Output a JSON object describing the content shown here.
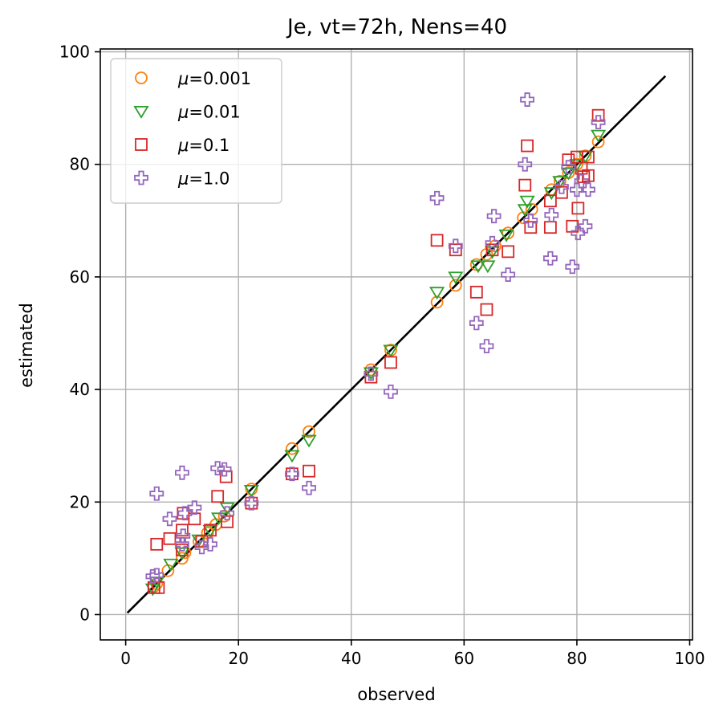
{
  "chart_data": {
    "type": "scatter",
    "title": "Je, vt=72h, Nens=40",
    "xlabel": "observed",
    "ylabel": "estimated",
    "xlim": [
      -4.5,
      100.5
    ],
    "ylim": [
      -4.5,
      100.5
    ],
    "xticks": [
      0,
      20,
      40,
      60,
      80,
      100
    ],
    "yticks": [
      0,
      20,
      40,
      60,
      80,
      100
    ],
    "grid": true,
    "legend_position": "top-left",
    "reference_line": {
      "x": [
        0.3,
        95.7
      ],
      "y": [
        0.3,
        95.7
      ],
      "color": "#000000"
    },
    "series": [
      {
        "name": "μ=0.001",
        "legend_prefix": "μ",
        "legend_suffix": "=0.001",
        "marker": "circle",
        "color": "#ff7f0e",
        "points": [
          [
            5,
            5
          ],
          [
            5.5,
            5.5
          ],
          [
            7.5,
            7.8
          ],
          [
            10,
            10
          ],
          [
            10.5,
            11
          ],
          [
            13,
            13
          ],
          [
            14.5,
            14.5
          ],
          [
            16,
            16
          ],
          [
            17.5,
            17.5
          ],
          [
            22.3,
            22.3
          ],
          [
            29.5,
            29.5
          ],
          [
            32.5,
            32.5
          ],
          [
            43.5,
            43.5
          ],
          [
            47,
            47
          ],
          [
            55.2,
            55.5
          ],
          [
            58.5,
            58.5
          ],
          [
            62.2,
            62.2
          ],
          [
            64,
            64
          ],
          [
            65.5,
            65.5
          ],
          [
            67.8,
            67.8
          ],
          [
            70.5,
            70.5
          ],
          [
            72,
            72
          ],
          [
            75.5,
            75.5
          ],
          [
            77,
            77
          ],
          [
            78.5,
            78.5
          ],
          [
            80,
            80
          ],
          [
            81.5,
            81.5
          ],
          [
            83.8,
            84
          ]
        ]
      },
      {
        "name": "μ=0.01",
        "legend_prefix": "μ",
        "legend_suffix": "=0.01",
        "marker": "triangle-down",
        "color": "#2ca02c",
        "points": [
          [
            4.8,
            4.6
          ],
          [
            5.5,
            5.8
          ],
          [
            8,
            9
          ],
          [
            10,
            11
          ],
          [
            13,
            13.3
          ],
          [
            15,
            15
          ],
          [
            16.5,
            17.2
          ],
          [
            18,
            19
          ],
          [
            22.3,
            22.1
          ],
          [
            29.5,
            28.3
          ],
          [
            32.5,
            31
          ],
          [
            43.5,
            43
          ],
          [
            47,
            47
          ],
          [
            55.2,
            57.3
          ],
          [
            58.5,
            60
          ],
          [
            62.5,
            62
          ],
          [
            64.2,
            62
          ],
          [
            65,
            64.5
          ],
          [
            67.5,
            67.5
          ],
          [
            70.8,
            72
          ],
          [
            71.2,
            73.5
          ],
          [
            75.5,
            75
          ],
          [
            77,
            77
          ],
          [
            78.5,
            78.5
          ],
          [
            80,
            80
          ],
          [
            81.5,
            81.5
          ],
          [
            83.8,
            85.2
          ]
        ]
      },
      {
        "name": "μ=0.1",
        "legend_prefix": "μ",
        "legend_suffix": "=0.1",
        "marker": "square",
        "color": "#d62728",
        "points": [
          [
            5,
            4.8
          ],
          [
            5.8,
            4.8
          ],
          [
            5.5,
            12.5
          ],
          [
            7.8,
            13.5
          ],
          [
            10,
            11.5
          ],
          [
            10,
            15
          ],
          [
            10.2,
            18
          ],
          [
            12.2,
            17
          ],
          [
            13.5,
            13
          ],
          [
            15,
            15
          ],
          [
            16.3,
            21
          ],
          [
            17.8,
            24.5
          ],
          [
            18,
            16.5
          ],
          [
            22.3,
            19.8
          ],
          [
            29.5,
            25
          ],
          [
            32.5,
            25.5
          ],
          [
            43.5,
            42.2
          ],
          [
            47,
            44.8
          ],
          [
            55.2,
            66.5
          ],
          [
            58.5,
            64.8
          ],
          [
            62.2,
            57.3
          ],
          [
            64,
            54.2
          ],
          [
            65,
            64.8
          ],
          [
            67.8,
            64.5
          ],
          [
            70.8,
            76.3
          ],
          [
            71.2,
            83.3
          ],
          [
            71.8,
            68.8
          ],
          [
            75.3,
            68.8
          ],
          [
            75.3,
            73.5
          ],
          [
            77.3,
            75
          ],
          [
            78.5,
            80.8
          ],
          [
            79.2,
            69
          ],
          [
            80,
            81.3
          ],
          [
            80.2,
            72.2
          ],
          [
            80.8,
            79.3
          ],
          [
            81.2,
            77.8
          ],
          [
            82,
            78
          ],
          [
            82,
            81.3
          ],
          [
            83.8,
            88.7
          ]
        ]
      },
      {
        "name": "μ=1.0",
        "legend_prefix": "μ",
        "legend_suffix": "=1.0",
        "marker": "plus",
        "color": "#9467bd",
        "points": [
          [
            4.8,
            6.8
          ],
          [
            5.5,
            7
          ],
          [
            5.5,
            21.5
          ],
          [
            7.8,
            17
          ],
          [
            10,
            25.2
          ],
          [
            10,
            12.5
          ],
          [
            10.5,
            18
          ],
          [
            10.2,
            14
          ],
          [
            12.2,
            19
          ],
          [
            13.5,
            12
          ],
          [
            15,
            12.5
          ],
          [
            16.3,
            26
          ],
          [
            17.5,
            25.8
          ],
          [
            18,
            18
          ],
          [
            22.3,
            19.8
          ],
          [
            29.5,
            25
          ],
          [
            32.5,
            22.5
          ],
          [
            43.5,
            42.8
          ],
          [
            47,
            39.6
          ],
          [
            55.2,
            74
          ],
          [
            58.5,
            65.5
          ],
          [
            62.2,
            51.8
          ],
          [
            64,
            47.7
          ],
          [
            65,
            66
          ],
          [
            65.3,
            70.8
          ],
          [
            67.8,
            60.4
          ],
          [
            70.8,
            80
          ],
          [
            71.2,
            91.5
          ],
          [
            71.8,
            70
          ],
          [
            75.3,
            63.3
          ],
          [
            75.5,
            71
          ],
          [
            77.3,
            76
          ],
          [
            78.5,
            79.5
          ],
          [
            79.2,
            61.8
          ],
          [
            80,
            75.5
          ],
          [
            80.2,
            67.8
          ],
          [
            80.8,
            77
          ],
          [
            81.5,
            69
          ],
          [
            82,
            75.5
          ],
          [
            83.8,
            87.5
          ]
        ]
      }
    ]
  }
}
